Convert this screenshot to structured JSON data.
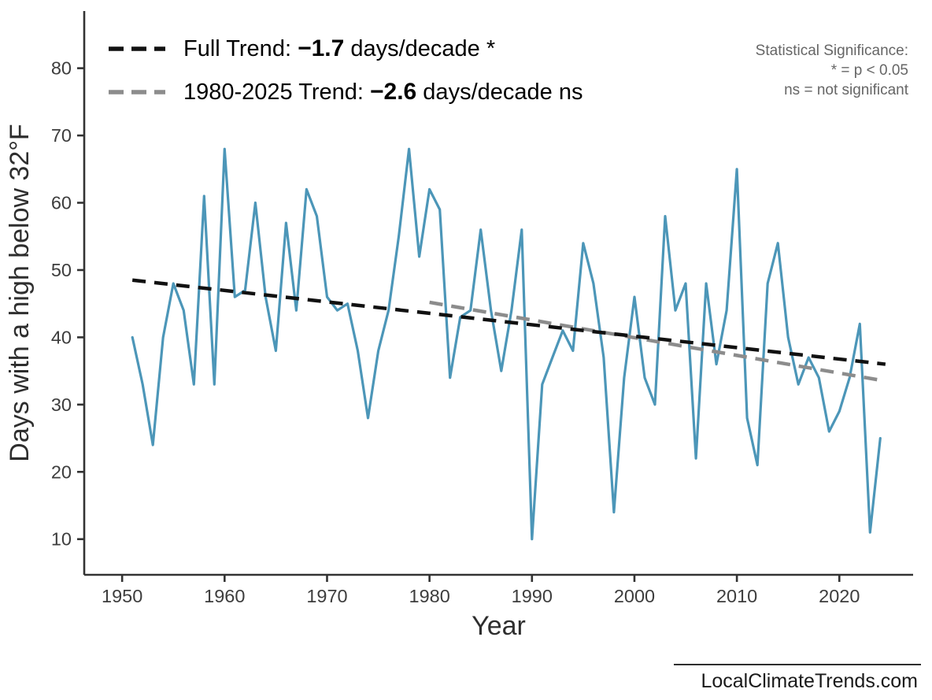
{
  "legend": {
    "items": [
      {
        "prefix": "Full Trend: ",
        "value": "−1.7",
        "suffix": " days/decade *"
      },
      {
        "prefix": "1980-2025 Trend: ",
        "value": "−2.6",
        "suffix": " days/decade ns"
      }
    ]
  },
  "significance_note": {
    "line1": "Statistical Significance:",
    "line2": "* = p < 0.05",
    "line3": "ns = not significant"
  },
  "footer": {
    "text": "LocalClimateTrends.com"
  },
  "chart_data": {
    "type": "line",
    "title": "",
    "xlabel": "Year",
    "ylabel": "Days with a high below 32°F",
    "x_ticks": [
      1950,
      1960,
      1970,
      1980,
      1990,
      2000,
      2010,
      2020
    ],
    "y_ticks": [
      10,
      20,
      30,
      40,
      50,
      60,
      70,
      80
    ],
    "xlim": [
      1946.3,
      2027.2
    ],
    "ylim": [
      4.7,
      88.5
    ],
    "grid": false,
    "legend_position": "top-left",
    "series": [
      {
        "name": "days-with-high-below-32F",
        "color": "#4C96B8",
        "x": [
          1951,
          1952,
          1953,
          1954,
          1955,
          1956,
          1957,
          1958,
          1959,
          1960,
          1961,
          1962,
          1963,
          1964,
          1965,
          1966,
          1967,
          1968,
          1969,
          1970,
          1971,
          1972,
          1973,
          1974,
          1975,
          1976,
          1977,
          1978,
          1979,
          1980,
          1981,
          1982,
          1983,
          1984,
          1985,
          1986,
          1987,
          1988,
          1989,
          1990,
          1991,
          1992,
          1993,
          1994,
          1995,
          1996,
          1997,
          1998,
          1999,
          2000,
          2001,
          2002,
          2003,
          2004,
          2005,
          2006,
          2007,
          2008,
          2009,
          2010,
          2011,
          2012,
          2013,
          2014,
          2015,
          2016,
          2017,
          2018,
          2019,
          2020,
          2021,
          2022,
          2023,
          2024
        ],
        "values": [
          40,
          33,
          24,
          40,
          48,
          44,
          33,
          61,
          33,
          68,
          46,
          47,
          60,
          46,
          38,
          57,
          44,
          62,
          58,
          46,
          44,
          45,
          38,
          28,
          38,
          44,
          55,
          68,
          52,
          62,
          59,
          34,
          43,
          44,
          56,
          44,
          35,
          44,
          56,
          10,
          33,
          37,
          41,
          38,
          54,
          48,
          37,
          14,
          34,
          46,
          34,
          30,
          58,
          44,
          48,
          22,
          48,
          36,
          44,
          65,
          28,
          21,
          48,
          54,
          40,
          33,
          37,
          34,
          26,
          29,
          34,
          42,
          11,
          25
        ]
      }
    ],
    "trend_lines": [
      {
        "name": "full-trend",
        "label": "Full Trend: −1.7 days/decade *",
        "slope_per_decade": -1.7,
        "significance": "*",
        "color": "#111111",
        "x1": 1951,
        "y1": 48.5,
        "x2": 2024.5,
        "y2": 36.0
      },
      {
        "name": "trend-1980-2025",
        "label": "1980-2025 Trend: −2.6 days/decade ns",
        "slope_per_decade": -2.6,
        "significance": "ns",
        "color": "#8C8C8C",
        "x1": 1980,
        "y1": 45.2,
        "x2": 2024.5,
        "y2": 33.5
      }
    ]
  }
}
